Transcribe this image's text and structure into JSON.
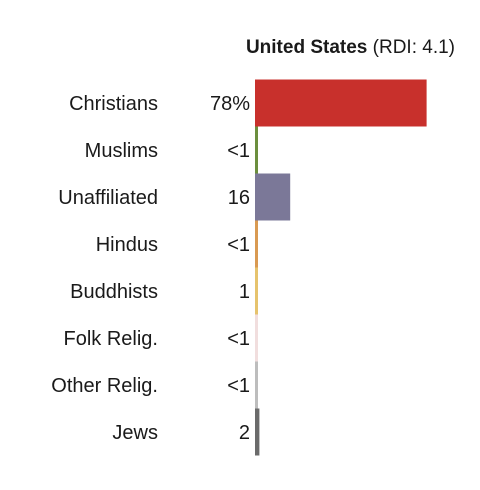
{
  "chart_data": {
    "type": "bar",
    "orientation": "horizontal",
    "title_bold": "United States",
    "title_rest": " (RDI: 4.1)",
    "categories": [
      "Christians",
      "Muslims",
      "Unaffiliated",
      "Hindus",
      "Buddhists",
      "Folk Relig.",
      "Other Relig.",
      "Jews"
    ],
    "value_labels": [
      "78%",
      "<1",
      "16",
      "<1",
      "1",
      "<1",
      "<1",
      "2"
    ],
    "values": [
      78,
      0.3,
      16,
      0.3,
      1,
      0.3,
      0.3,
      2
    ],
    "colors": [
      "#c8302c",
      "#6c8f3e",
      "#7b7898",
      "#d99a52",
      "#e6c36d",
      "#f1dede",
      "#bdbdbd",
      "#6b6b6b"
    ],
    "xlim": [
      0,
      100
    ],
    "grid": false,
    "legend": "none"
  }
}
